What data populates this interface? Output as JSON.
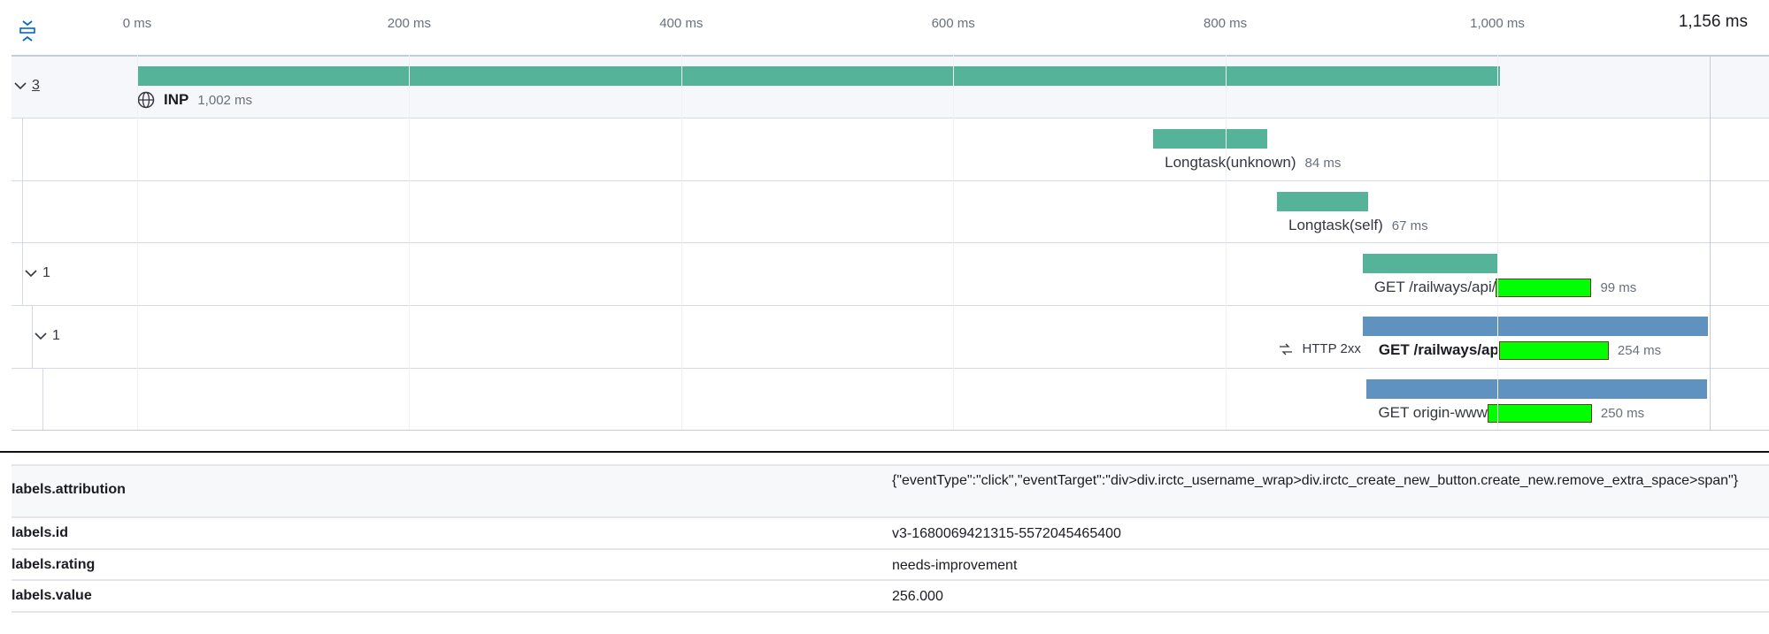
{
  "header": {
    "collapse_icon": "collapse-vertical-icon",
    "ticks": [
      "0 ms",
      "200 ms",
      "400 ms",
      "600 ms",
      "800 ms",
      "1,000 ms"
    ],
    "tick_values_ms": [
      0,
      200,
      400,
      600,
      800,
      1000
    ],
    "total": "1,156 ms",
    "total_ms": 1156
  },
  "colors": {
    "teal": "#54b399",
    "blue": "#6092c0",
    "redaction": "#00ff00"
  },
  "spans": [
    {
      "group_count": "3",
      "icon": "globe-icon",
      "name": "INP",
      "duration": "1,002 ms",
      "start_ms": 0,
      "duration_ms": 1002,
      "color": "#54b399",
      "bold": true
    },
    {
      "name": "Longtask(unknown)",
      "duration": "84 ms",
      "start_ms": 747,
      "duration_ms": 84,
      "color": "#54b399"
    },
    {
      "name": "Longtask(self)",
      "duration": "67 ms",
      "start_ms": 838,
      "duration_ms": 67,
      "color": "#54b399"
    },
    {
      "group_count": "1",
      "name": "GET /railways/api/",
      "duration": "99 ms",
      "start_ms": 901,
      "duration_ms": 99,
      "color": "#54b399",
      "redacted": true
    },
    {
      "group_count": "1",
      "status_icon": "http-arrows-icon",
      "status": "HTTP 2xx",
      "name": "GET /railways/ap",
      "duration": "254 ms",
      "start_ms": 901,
      "duration_ms": 254,
      "color": "#6092c0",
      "bold": true,
      "redacted": true
    },
    {
      "name": "GET origin-www",
      "duration": "250 ms",
      "start_ms": 904,
      "duration_ms": 250,
      "color": "#6092c0",
      "redacted": true
    }
  ],
  "metadata": [
    {
      "key": "labels.attribution",
      "value": "{\"eventType\":\"click\",\"eventTarget\":\"div>div.irctc_username_wrap>div.irctc_create_new_button.create_new.remove_extra_space>span\"}"
    },
    {
      "key": "labels.id",
      "value": "v3-1680069421315-5572045465400"
    },
    {
      "key": "labels.rating",
      "value": "needs-improvement"
    },
    {
      "key": "labels.value",
      "value": "256.000"
    }
  ]
}
